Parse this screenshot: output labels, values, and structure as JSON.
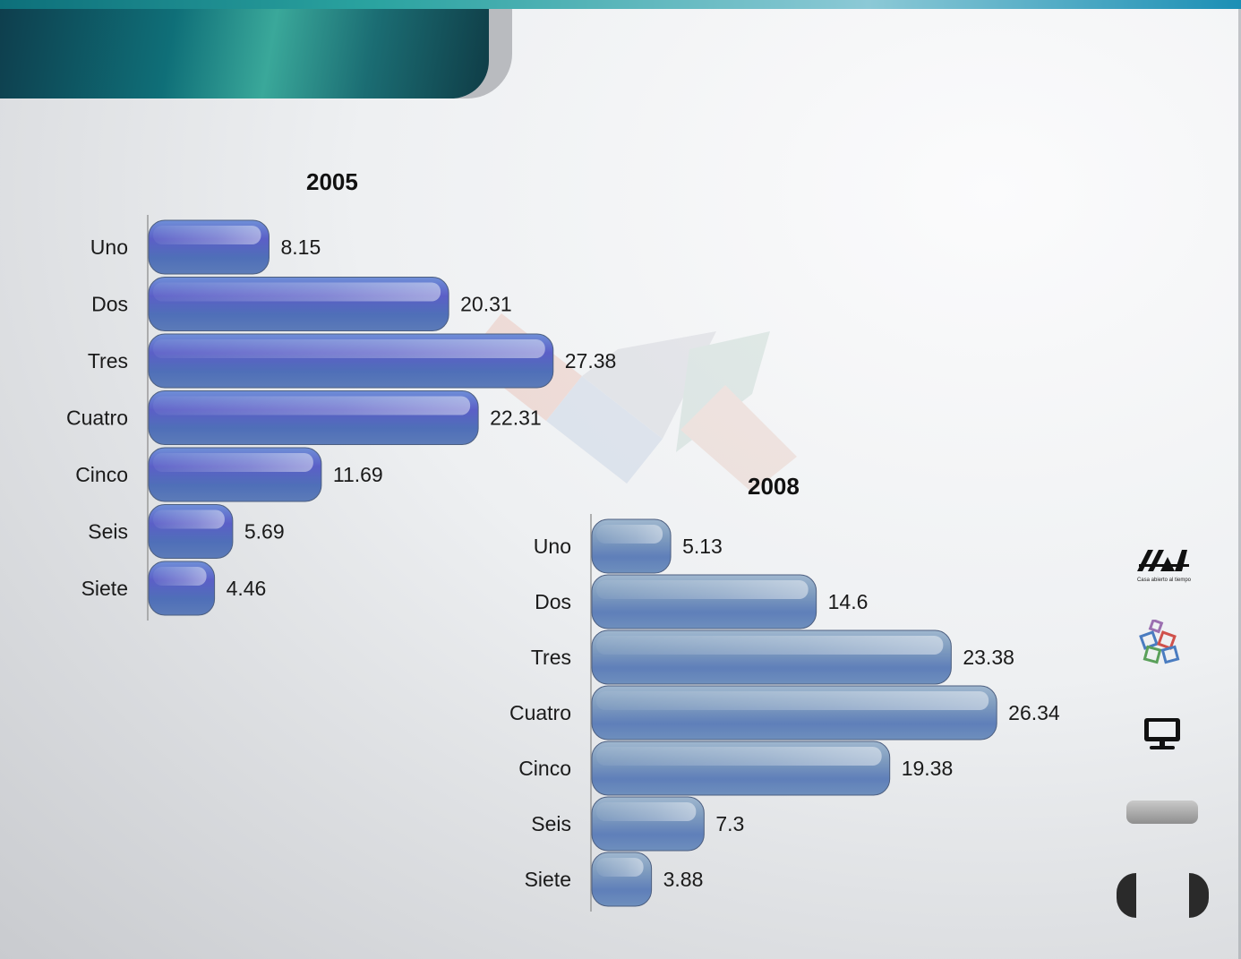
{
  "slide": {
    "logo_caption": "Casa abierto al tiempo",
    "colors": {
      "banner": "#0f6f78",
      "bar_2005": "#5b5fc7",
      "bar_2008": "#7f9cbf"
    },
    "icons": [
      "uam-logo-icon",
      "puzzle-blocks-icon",
      "computer-monitor-icon",
      "gray-button-icon",
      "previous-icon",
      "next-icon"
    ]
  },
  "chart_data": [
    {
      "type": "bar",
      "orientation": "horizontal",
      "title": "2005",
      "categories": [
        "Uno",
        "Dos",
        "Tres",
        "Cuatro",
        "Cinco",
        "Seis",
        "Siete"
      ],
      "values": [
        8.15,
        20.31,
        27.38,
        22.31,
        11.69,
        5.69,
        4.46
      ],
      "value_labels": [
        "8.15",
        "20.31",
        "27.38",
        "22.31",
        "11.69",
        "5.69",
        "4.46"
      ],
      "xlim": [
        0,
        30
      ],
      "grid": false,
      "legend": "none"
    },
    {
      "type": "bar",
      "orientation": "horizontal",
      "title": "2008",
      "categories": [
        "Uno",
        "Dos",
        "Tres",
        "Cuatro",
        "Cinco",
        "Seis",
        "Siete"
      ],
      "values": [
        5.13,
        14.6,
        23.38,
        26.34,
        19.38,
        7.3,
        3.88
      ],
      "value_labels": [
        "5.13",
        "14.6",
        "23.38",
        "26.34",
        "19.38",
        "7.3",
        "3.88"
      ],
      "xlim": [
        0,
        30
      ],
      "grid": false,
      "legend": "none"
    }
  ]
}
